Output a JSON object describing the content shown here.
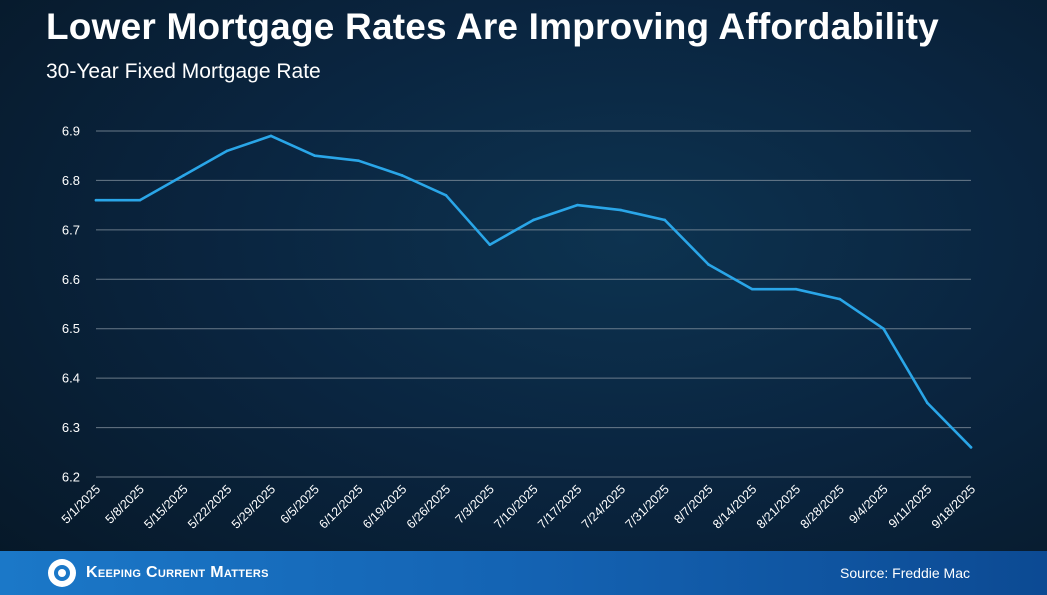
{
  "header": {
    "title": "Lower Mortgage Rates Are Improving Affordability",
    "subtitle": "30-Year Fixed Mortgage Rate"
  },
  "footer": {
    "brand": "Keeping Current Matters",
    "source": "Source: Freddie Mac"
  },
  "colors": {
    "line": "#2aa6e8",
    "grid": "#8a97a3",
    "footer": "#1b78c8"
  },
  "chart_data": {
    "type": "line",
    "title": "Lower Mortgage Rates Are Improving Affordability",
    "subtitle": "30-Year Fixed Mortgage Rate",
    "xlabel": "",
    "ylabel": "",
    "ylim": [
      6.2,
      6.9
    ],
    "yticks": [
      "6.2",
      "6.3",
      "6.4",
      "6.5",
      "6.6",
      "6.7",
      "6.8",
      "6.9"
    ],
    "grid": true,
    "categories": [
      "5/1/2025",
      "5/8/2025",
      "5/15/2025",
      "5/22/2025",
      "5/29/2025",
      "6/5/2025",
      "6/12/2025",
      "6/19/2025",
      "6/26/2025",
      "7/3/2025",
      "7/10/2025",
      "7/17/2025",
      "7/24/2025",
      "7/31/2025",
      "8/7/2025",
      "8/14/2025",
      "8/21/2025",
      "8/28/2025",
      "9/4/2025",
      "9/11/2025",
      "9/18/2025"
    ],
    "series": [
      {
        "name": "30-Year Fixed Mortgage Rate",
        "values": [
          6.76,
          6.76,
          6.81,
          6.86,
          6.89,
          6.85,
          6.84,
          6.81,
          6.77,
          6.67,
          6.72,
          6.75,
          6.74,
          6.72,
          6.63,
          6.58,
          6.58,
          6.56,
          6.5,
          6.35,
          6.26
        ]
      }
    ]
  }
}
